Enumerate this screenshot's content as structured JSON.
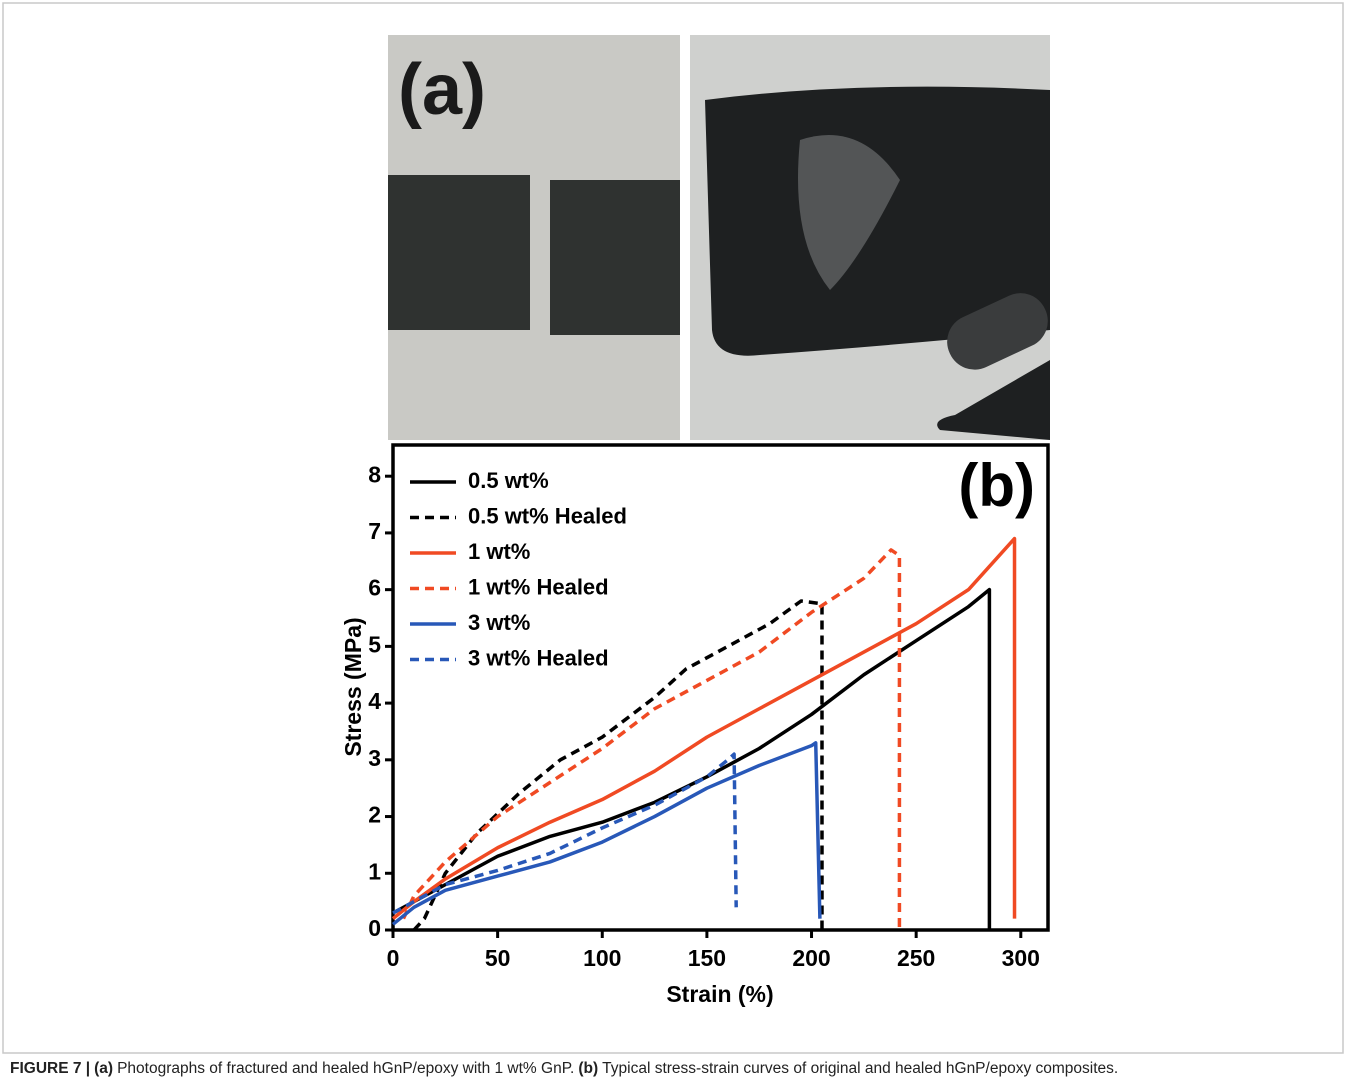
{
  "panel_a_label": "(a)",
  "caption": {
    "figure_label": "FIGURE 7 |",
    "a_label": "(a)",
    "a_text": "Photographs of fractured and healed hGnP/epoxy with 1 wt% GnP.",
    "b_label": "(b)",
    "b_text": "Typical stress-strain curves of original and healed hGnP/epoxy composites."
  },
  "chart_data": {
    "type": "line",
    "annotation": "(b)",
    "x_label": "Strain (%)",
    "y_label": "Stress (MPa)",
    "xlim": [
      0,
      313
    ],
    "ylim": [
      0,
      8.55
    ],
    "xticks": [
      0,
      50,
      100,
      150,
      200,
      250,
      300
    ],
    "yticks": [
      0,
      1,
      2,
      3,
      4,
      5,
      6,
      7,
      8
    ],
    "legend": "top-left",
    "series": [
      {
        "name": "0.5 wt%",
        "color": "#000000",
        "dash": false,
        "x": [
          0,
          10,
          25,
          50,
          75,
          100,
          125,
          150,
          175,
          200,
          225,
          250,
          275,
          285,
          285
        ],
        "values": [
          0.3,
          0.5,
          0.8,
          1.3,
          1.65,
          1.9,
          2.25,
          2.7,
          3.2,
          3.8,
          4.5,
          5.1,
          5.7,
          6.0,
          0
        ]
      },
      {
        "name": "0.5 wt% Healed",
        "color": "#000000",
        "dash": true,
        "x": [
          10,
          15,
          25,
          40,
          60,
          80,
          100,
          125,
          140,
          160,
          180,
          195,
          205,
          205
        ],
        "values": [
          0,
          0.2,
          1.0,
          1.7,
          2.4,
          3.0,
          3.4,
          4.1,
          4.6,
          5.0,
          5.4,
          5.8,
          5.75,
          0
        ]
      },
      {
        "name": "1 wt%",
        "color": "#f04a23",
        "dash": false,
        "x": [
          0,
          10,
          25,
          50,
          75,
          100,
          125,
          150,
          175,
          200,
          225,
          250,
          275,
          297,
          297
        ],
        "values": [
          0.2,
          0.5,
          0.9,
          1.45,
          1.9,
          2.3,
          2.8,
          3.4,
          3.9,
          4.4,
          4.9,
          5.4,
          6.0,
          6.9,
          0.2
        ]
      },
      {
        "name": "1 wt% Healed",
        "color": "#f04a23",
        "dash": true,
        "x": [
          5,
          10,
          25,
          50,
          75,
          100,
          125,
          150,
          175,
          200,
          225,
          238,
          242,
          242
        ],
        "values": [
          0.2,
          0.6,
          1.2,
          2.0,
          2.6,
          3.2,
          3.9,
          4.4,
          4.9,
          5.6,
          6.2,
          6.7,
          6.6,
          0
        ]
      },
      {
        "name": "3 wt%",
        "color": "#2858b8",
        "dash": false,
        "x": [
          0,
          10,
          25,
          50,
          75,
          100,
          125,
          150,
          175,
          200,
          202,
          204
        ],
        "values": [
          0.1,
          0.4,
          0.7,
          0.95,
          1.2,
          1.55,
          2.0,
          2.5,
          2.9,
          3.25,
          3.3,
          0.2
        ]
      },
      {
        "name": "3 wt% Healed",
        "color": "#2858b8",
        "dash": true,
        "x": [
          0,
          15,
          25,
          50,
          75,
          100,
          125,
          150,
          160,
          163,
          164
        ],
        "values": [
          0.3,
          0.6,
          0.8,
          1.05,
          1.35,
          1.8,
          2.2,
          2.7,
          3.0,
          3.1,
          0.4
        ]
      }
    ]
  }
}
